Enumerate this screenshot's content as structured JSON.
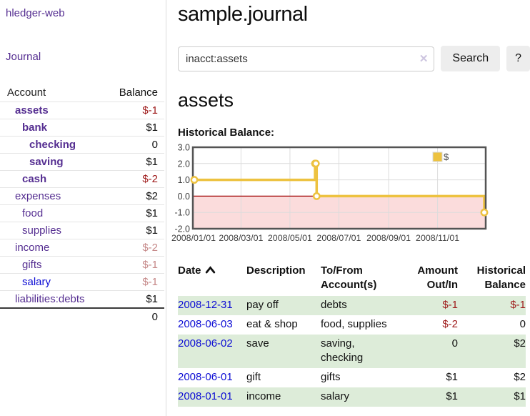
{
  "sidebar": {
    "brand": "hledger-web",
    "nav": {
      "journal_label": "Journal"
    },
    "table": {
      "account_header": "Account",
      "balance_header": "Balance",
      "total": "0",
      "accounts": [
        {
          "name": "assets",
          "balance": "$-1",
          "level": 1,
          "bold": true,
          "negative": "strong"
        },
        {
          "name": "bank",
          "balance": "$1",
          "level": 2,
          "bold": true,
          "negative": null
        },
        {
          "name": "checking",
          "balance": "0",
          "level": 3,
          "bold": true,
          "negative": null
        },
        {
          "name": "saving",
          "balance": "$1",
          "level": 3,
          "bold": true,
          "negative": null
        },
        {
          "name": "cash",
          "balance": "$-2",
          "level": 2,
          "bold": true,
          "negative": "strong"
        },
        {
          "name": "expenses",
          "balance": "$2",
          "level": 1,
          "bold": false,
          "negative": null
        },
        {
          "name": "food",
          "balance": "$1",
          "level": 2,
          "bold": false,
          "negative": null
        },
        {
          "name": "supplies",
          "balance": "$1",
          "level": 2,
          "bold": false,
          "negative": null
        },
        {
          "name": "income",
          "balance": "$-2",
          "level": 1,
          "bold": false,
          "negative": "faded"
        },
        {
          "name": "gifts",
          "balance": "$-1",
          "level": 2,
          "bold": false,
          "negative": "faded"
        },
        {
          "name": "salary",
          "balance": "$-1",
          "level": 2,
          "bold": false,
          "negative": "faded",
          "link_color": "blue"
        },
        {
          "name": "liabilities:debts",
          "balance": "$1",
          "level": 1,
          "bold": false,
          "negative": null
        }
      ]
    }
  },
  "main": {
    "title": "sample.journal",
    "search": {
      "query": "inacct:assets",
      "clear_icon": "✕",
      "button_label": "Search",
      "help_label": "?"
    },
    "account_heading": "assets",
    "chart_heading": "Historical Balance:",
    "register": {
      "columns": [
        "Date",
        "Description",
        "To/From Account(s)",
        "Amount Out/In",
        "Historical Balance"
      ],
      "rows": [
        {
          "date": "2008-12-31",
          "description": "pay off",
          "accounts": [
            "debts"
          ],
          "amount": "$-1",
          "amount_negative": true,
          "balance": "$-1",
          "balance_negative": true
        },
        {
          "date": "2008-06-03",
          "description": "eat & shop",
          "accounts": [
            "food, supplies"
          ],
          "amount": "$-2",
          "amount_negative": true,
          "balance": "0",
          "balance_negative": false
        },
        {
          "date": "2008-06-02",
          "description": "save",
          "accounts": [
            "saving,",
            "checking"
          ],
          "amount": "0",
          "amount_negative": false,
          "balance": "$2",
          "balance_negative": false
        },
        {
          "date": "2008-06-01",
          "description": "gift",
          "accounts": [
            "gifts"
          ],
          "amount": "$1",
          "amount_negative": false,
          "balance": "$2",
          "balance_negative": false
        },
        {
          "date": "2008-01-01",
          "description": "income",
          "accounts": [
            "salary"
          ],
          "amount": "$1",
          "amount_negative": false,
          "balance": "$1",
          "balance_negative": false
        }
      ]
    }
  },
  "chart_data": {
    "type": "line",
    "title": "Historical Balance",
    "step": true,
    "series": [
      {
        "name": "$",
        "color": "#edc240",
        "points": [
          [
            "2008-01-01",
            1
          ],
          [
            "2008-06-01",
            2
          ],
          [
            "2008-06-02",
            2
          ],
          [
            "2008-06-03",
            0
          ],
          [
            "2008-12-31",
            -1
          ]
        ]
      }
    ],
    "ylim": [
      -2,
      3
    ],
    "yticks": [
      "3.0",
      "2.0",
      "1.0",
      "0.0",
      "-1.0",
      "-2.0"
    ],
    "xticks": [
      "2008/01/01",
      "2008/03/01",
      "2008/05/01",
      "2008/07/01",
      "2008/09/01",
      "2008/11/01"
    ],
    "grid": true,
    "legend": {
      "label": "$",
      "position": "top-right"
    },
    "negative_region_fill": "#fbdcdc",
    "zero_line_color": "#a00000",
    "border_color": "#545454",
    "grid_color": "#dcdcdc"
  },
  "colors": {
    "purple": "#552e91",
    "blue_link": "#0d0dd4",
    "neg": "#9e1a1a",
    "neg_faded": "#c58888",
    "row_green": "#ddecd9",
    "chart_line": "#edc240",
    "btn_bg": "#ededed"
  }
}
